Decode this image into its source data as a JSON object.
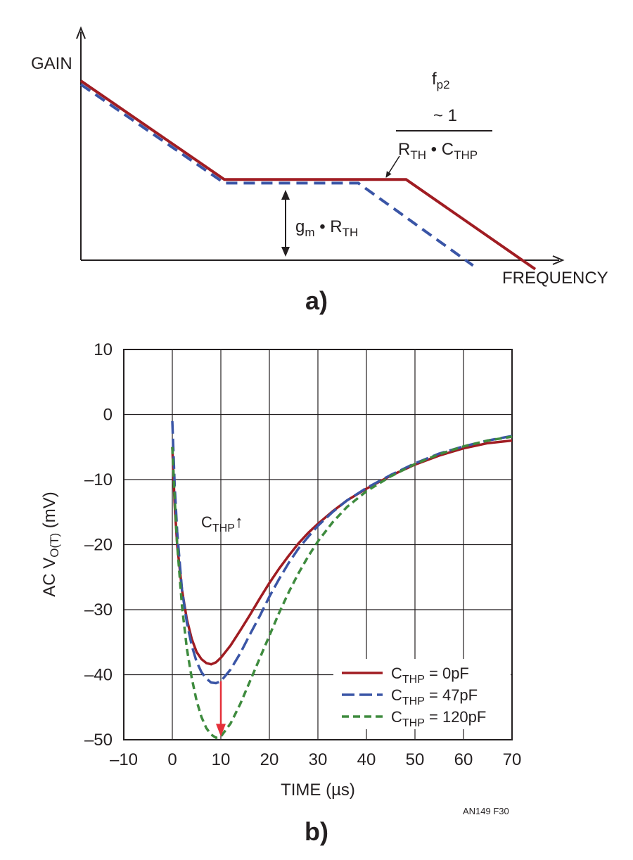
{
  "figure_label": "AN149 F30",
  "colors": {
    "red": "#a01c22",
    "blue": "#3a55a6",
    "green": "#3e8b3e",
    "arrow": "#e5303a",
    "axis": "#231f20",
    "grid": "#231f20"
  },
  "chart_data": [
    {
      "panel": "a)",
      "type": "line",
      "xlabel": "FREQUENCY",
      "ylabel": "GAIN",
      "annotations": {
        "pole_label_main": "f",
        "pole_label_sub": "p2",
        "pole_numerator": "~ 1",
        "pole_den_r": "R",
        "pole_den_r_sub": "TH",
        "pole_den_dot": " • C",
        "pole_den_c_sub": "THP",
        "gain_label_main": "g",
        "gain_label_sub": "m",
        "gain_label_dot": " • R",
        "gain_label_sub2": "TH"
      },
      "series": [
        {
          "style": "solid",
          "color": "#a01c22",
          "points": [
            [
              0,
              1.0
            ],
            [
              0.3,
              0.45
            ],
            [
              0.68,
              0.45
            ],
            [
              0.95,
              -0.05
            ]
          ]
        },
        {
          "style": "dashed",
          "color": "#3a55a6",
          "points": [
            [
              0,
              0.98
            ],
            [
              0.3,
              0.43
            ],
            [
              0.58,
              0.43
            ],
            [
              0.82,
              -0.03
            ]
          ]
        }
      ]
    },
    {
      "panel": "b)",
      "type": "line",
      "xlabel": "TIME (µs)",
      "ylabel_main": "AC V",
      "ylabel_sub": "O(T)",
      "ylabel_unit": " (mV)",
      "xlim": [
        -10,
        70
      ],
      "ylim": [
        -50,
        10
      ],
      "xticks": [
        -10,
        0,
        10,
        20,
        30,
        40,
        50,
        60,
        70
      ],
      "yticks": [
        10,
        0,
        -10,
        -20,
        -30,
        -40,
        -50
      ],
      "xtick_labels": [
        "–10",
        "0",
        "10",
        "20",
        "30",
        "40",
        "50",
        "60",
        "70"
      ],
      "ytick_labels": [
        "10",
        "0",
        "–10",
        "–20",
        "–30",
        "–40",
        "–50"
      ],
      "annotation_main": "C",
      "annotation_sub": "THP",
      "annotation_arrow": "↑",
      "legend_position": "bottom-right",
      "series": [
        {
          "legend_main": "C",
          "legend_sub": "THP",
          "legend_value": " = 0pF",
          "style": "solid",
          "color": "#a01c22",
          "points": [
            [
              0,
              -5
            ],
            [
              0.5,
              -14
            ],
            [
              1,
              -20
            ],
            [
              2,
              -27
            ],
            [
              3,
              -31.5
            ],
            [
              4,
              -34.5
            ],
            [
              5,
              -36.5
            ],
            [
              6,
              -37.6
            ],
            [
              7,
              -38.2
            ],
            [
              8,
              -38.4
            ],
            [
              9,
              -38.1
            ],
            [
              10,
              -37.4
            ],
            [
              12,
              -35.5
            ],
            [
              14,
              -33.2
            ],
            [
              16,
              -30.8
            ],
            [
              18,
              -28.3
            ],
            [
              20,
              -25.9
            ],
            [
              22,
              -23.7
            ],
            [
              24,
              -21.7
            ],
            [
              26,
              -19.8
            ],
            [
              28,
              -18.2
            ],
            [
              30,
              -16.8
            ],
            [
              33,
              -14.9
            ],
            [
              36,
              -13.2
            ],
            [
              40,
              -11.4
            ],
            [
              45,
              -9.4
            ],
            [
              50,
              -7.7
            ],
            [
              55,
              -6.3
            ],
            [
              60,
              -5.2
            ],
            [
              65,
              -4.4
            ],
            [
              70,
              -4.0
            ]
          ]
        },
        {
          "legend_main": "C",
          "legend_sub": "THP",
          "legend_value": " = 47pF",
          "style": "dashed",
          "color": "#3a55a6",
          "points": [
            [
              0,
              -1
            ],
            [
              0.5,
              -11
            ],
            [
              1,
              -18
            ],
            [
              2,
              -27
            ],
            [
              3,
              -32
            ],
            [
              4,
              -35.5
            ],
            [
              5,
              -38
            ],
            [
              6,
              -39.6
            ],
            [
              7,
              -40.6
            ],
            [
              8,
              -41.2
            ],
            [
              9,
              -41.3
            ],
            [
              10,
              -41
            ],
            [
              12,
              -39.2
            ],
            [
              14,
              -36.7
            ],
            [
              16,
              -33.8
            ],
            [
              18,
              -31
            ],
            [
              20,
              -28
            ],
            [
              22,
              -25.3
            ],
            [
              24,
              -22.8
            ],
            [
              26,
              -20.6
            ],
            [
              28,
              -18.8
            ],
            [
              30,
              -17.1
            ],
            [
              33,
              -15
            ],
            [
              36,
              -13.2
            ],
            [
              40,
              -11.3
            ],
            [
              45,
              -9.3
            ],
            [
              50,
              -7.5
            ],
            [
              55,
              -6
            ],
            [
              60,
              -4.9
            ],
            [
              65,
              -4.0
            ],
            [
              70,
              -3.3
            ]
          ]
        },
        {
          "legend_main": "C",
          "legend_sub": "THP",
          "legend_value": " = 120pF",
          "style": "dashed",
          "color": "#3e8b3e",
          "points": [
            [
              0,
              -5
            ],
            [
              0.5,
              -13
            ],
            [
              1,
              -20
            ],
            [
              2,
              -29.5
            ],
            [
              3,
              -36
            ],
            [
              4,
              -40.5
            ],
            [
              5,
              -44
            ],
            [
              6,
              -46.5
            ],
            [
              7,
              -48.2
            ],
            [
              8,
              -49.2
            ],
            [
              9,
              -49.7
            ],
            [
              10,
              -49.5
            ],
            [
              12,
              -47.5
            ],
            [
              14,
              -44.5
            ],
            [
              16,
              -41
            ],
            [
              18,
              -37.5
            ],
            [
              20,
              -34
            ],
            [
              22,
              -30.5
            ],
            [
              24,
              -27.3
            ],
            [
              26,
              -24.4
            ],
            [
              28,
              -21.8
            ],
            [
              30,
              -19.5
            ],
            [
              33,
              -16.6
            ],
            [
              36,
              -14.2
            ],
            [
              40,
              -11.8
            ],
            [
              45,
              -9.5
            ],
            [
              50,
              -7.6
            ],
            [
              55,
              -6.1
            ],
            [
              60,
              -4.9
            ],
            [
              65,
              -4.0
            ],
            [
              70,
              -3.4
            ]
          ]
        }
      ],
      "drop_arrow": {
        "x": 10,
        "y_from": -41,
        "y_to": -49.5
      }
    }
  ]
}
